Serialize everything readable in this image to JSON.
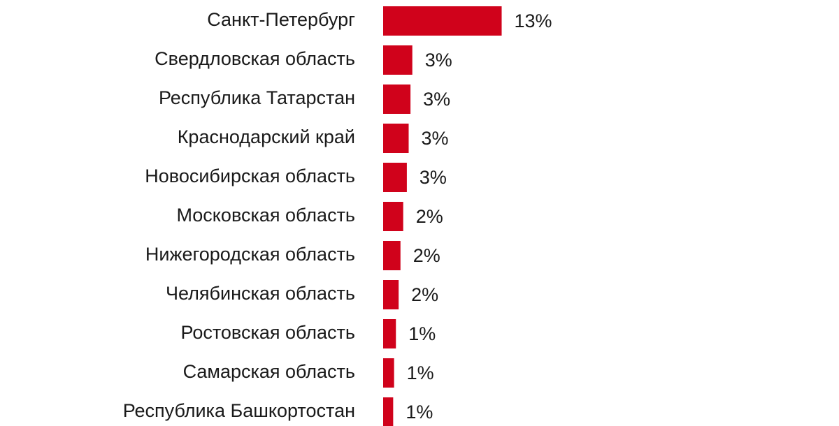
{
  "chart_data": {
    "type": "bar",
    "orientation": "horizontal",
    "categories": [
      "Санкт-Петербург",
      "Свердловская область",
      "Республика Татарстан",
      "Краснодарский край",
      "Новосибирская область",
      "Московская область",
      "Нижегородская область",
      "Челябинская область",
      "Ростовская область",
      "Самарская область",
      "Республика Башкортостан"
    ],
    "values": [
      13,
      3.2,
      3.0,
      2.8,
      2.6,
      2.2,
      1.9,
      1.7,
      1.4,
      1.2,
      1.1
    ],
    "value_labels": [
      "13%",
      "3%",
      "3%",
      "3%",
      "3%",
      "2%",
      "2%",
      "2%",
      "1%",
      "1%",
      "1%"
    ],
    "color": "#d0021b",
    "xlim": [
      0,
      50
    ]
  }
}
